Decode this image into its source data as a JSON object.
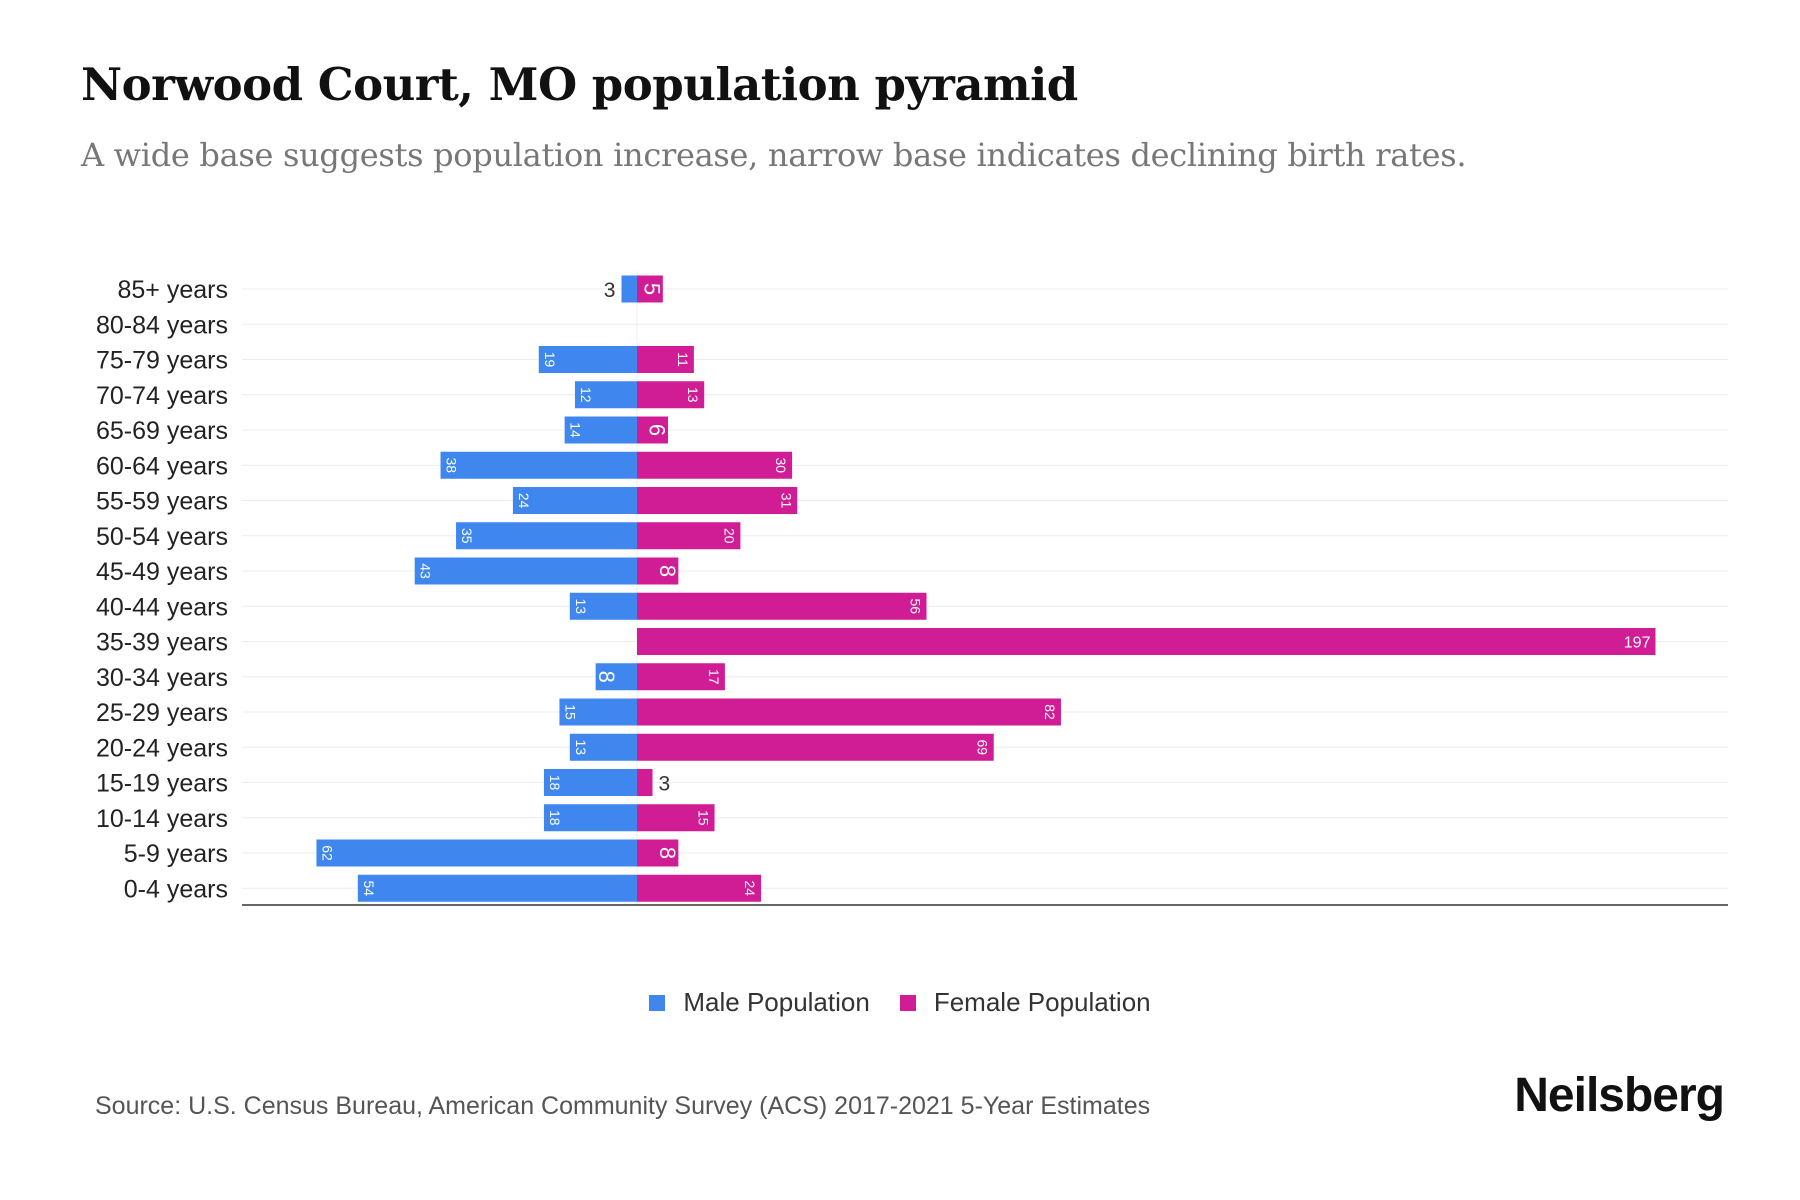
{
  "title": "Norwood Court, MO population pyramid",
  "subtitle": "A wide base suggests population increase, narrow base indicates declining birth rates.",
  "source": "Source: U.S. Census Bureau, American Community Survey (ACS) 2017-2021 5-Year Estimates",
  "logo": "Neilsberg",
  "colors": {
    "male": "#3f86ef",
    "female": "#d01c95"
  },
  "chart_data": {
    "type": "bar",
    "orientation": "horizontal-diverging",
    "categories": [
      "85+ years",
      "80-84 years",
      "75-79 years",
      "70-74 years",
      "65-69 years",
      "60-64 years",
      "55-59 years",
      "50-54 years",
      "45-49 years",
      "40-44 years",
      "35-39 years",
      "30-34 years",
      "25-29 years",
      "20-24 years",
      "15-19 years",
      "10-14 years",
      "5-9 years",
      "0-4 years"
    ],
    "series": [
      {
        "name": "Male Population",
        "values": [
          3,
          0,
          19,
          12,
          14,
          38,
          24,
          35,
          43,
          13,
          0,
          8,
          15,
          13,
          18,
          18,
          62,
          54
        ]
      },
      {
        "name": "Female Population",
        "values": [
          5,
          0,
          11,
          13,
          6,
          30,
          31,
          20,
          8,
          56,
          197,
          17,
          82,
          69,
          3,
          15,
          8,
          24
        ]
      }
    ],
    "legend_position": "bottom-center",
    "grid": true
  }
}
